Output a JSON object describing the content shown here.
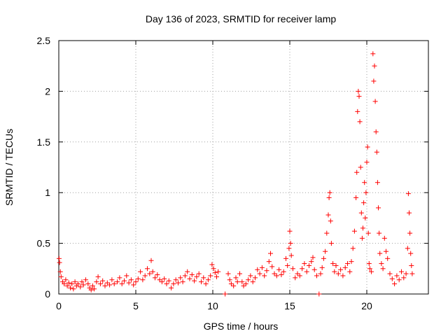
{
  "chart_data": {
    "type": "scatter",
    "title": "Day 136 of 2023, SRMTID for receiver lamp",
    "xlabel": "GPS time / hours",
    "ylabel": "SRMTID / TECUs",
    "xlim": [
      0,
      24
    ],
    "ylim": [
      0,
      2.5
    ],
    "xticks": [
      0,
      5,
      10,
      15,
      20
    ],
    "xtick_labels": [
      "0",
      "5",
      "10",
      "15",
      "20"
    ],
    "yticks": [
      0,
      0.5,
      1,
      1.5,
      2,
      2.5
    ],
    "ytick_labels": [
      "0",
      "0.5",
      "1",
      "1.5",
      "2",
      "2.5"
    ],
    "grid": true,
    "marker": "plus",
    "series_color": "#ff0000",
    "series": [
      {
        "name": "SRMTID",
        "points": [
          [
            0.02,
            0.35
          ],
          [
            0.05,
            0.31
          ],
          [
            0.1,
            0.22
          ],
          [
            0.15,
            0.17
          ],
          [
            0.25,
            0.12
          ],
          [
            0.35,
            0.1
          ],
          [
            0.45,
            0.14
          ],
          [
            0.55,
            0.08
          ],
          [
            0.65,
            0.11
          ],
          [
            0.75,
            0.06
          ],
          [
            0.85,
            0.1
          ],
          [
            0.95,
            0.05
          ],
          [
            1.05,
            0.12
          ],
          [
            1.15,
            0.08
          ],
          [
            1.25,
            0.1
          ],
          [
            1.4,
            0.07
          ],
          [
            1.5,
            0.12
          ],
          [
            1.6,
            0.09
          ],
          [
            1.75,
            0.14
          ],
          [
            1.9,
            0.1
          ],
          [
            2.0,
            0.06
          ],
          [
            2.1,
            0.04
          ],
          [
            2.2,
            0.08
          ],
          [
            2.3,
            0.05
          ],
          [
            2.45,
            0.12
          ],
          [
            2.55,
            0.17
          ],
          [
            2.7,
            0.1
          ],
          [
            2.85,
            0.13
          ],
          [
            3.0,
            0.08
          ],
          [
            3.15,
            0.11
          ],
          [
            3.3,
            0.09
          ],
          [
            3.45,
            0.14
          ],
          [
            3.6,
            0.1
          ],
          [
            3.8,
            0.12
          ],
          [
            3.95,
            0.16
          ],
          [
            4.1,
            0.1
          ],
          [
            4.25,
            0.13
          ],
          [
            4.4,
            0.18
          ],
          [
            4.55,
            0.11
          ],
          [
            4.7,
            0.14
          ],
          [
            4.85,
            0.09
          ],
          [
            5.0,
            0.12
          ],
          [
            5.15,
            0.15
          ],
          [
            5.3,
            0.22
          ],
          [
            5.45,
            0.14
          ],
          [
            5.6,
            0.18
          ],
          [
            5.75,
            0.25
          ],
          [
            5.9,
            0.2
          ],
          [
            6.0,
            0.33
          ],
          [
            6.1,
            0.22
          ],
          [
            6.25,
            0.16
          ],
          [
            6.4,
            0.19
          ],
          [
            6.55,
            0.14
          ],
          [
            6.7,
            0.12
          ],
          [
            6.85,
            0.15
          ],
          [
            7.0,
            0.1
          ],
          [
            7.15,
            0.13
          ],
          [
            7.3,
            0.06
          ],
          [
            7.45,
            0.1
          ],
          [
            7.6,
            0.14
          ],
          [
            7.75,
            0.11
          ],
          [
            7.9,
            0.16
          ],
          [
            8.05,
            0.12
          ],
          [
            8.2,
            0.18
          ],
          [
            8.35,
            0.22
          ],
          [
            8.5,
            0.15
          ],
          [
            8.65,
            0.19
          ],
          [
            8.8,
            0.13
          ],
          [
            8.95,
            0.17
          ],
          [
            9.1,
            0.2
          ],
          [
            9.25,
            0.12
          ],
          [
            9.4,
            0.16
          ],
          [
            9.55,
            0.1
          ],
          [
            9.7,
            0.14
          ],
          [
            9.85,
            0.18
          ],
          [
            9.95,
            0.29
          ],
          [
            10.05,
            0.25
          ],
          [
            10.15,
            0.21
          ],
          [
            10.25,
            0.17
          ],
          [
            10.35,
            0.22
          ],
          [
            10.8,
            0.0
          ],
          [
            11.0,
            0.2
          ],
          [
            11.1,
            0.14
          ],
          [
            11.2,
            0.1
          ],
          [
            11.35,
            0.08
          ],
          [
            11.5,
            0.16
          ],
          [
            11.6,
            0.12
          ],
          [
            11.75,
            0.2
          ],
          [
            11.9,
            0.12
          ],
          [
            12.0,
            0.08
          ],
          [
            12.15,
            0.1
          ],
          [
            12.3,
            0.14
          ],
          [
            12.45,
            0.18
          ],
          [
            12.6,
            0.12
          ],
          [
            12.75,
            0.16
          ],
          [
            12.9,
            0.24
          ],
          [
            13.05,
            0.2
          ],
          [
            13.2,
            0.26
          ],
          [
            13.35,
            0.18
          ],
          [
            13.5,
            0.23
          ],
          [
            13.65,
            0.32
          ],
          [
            13.75,
            0.4
          ],
          [
            13.85,
            0.27
          ],
          [
            14.0,
            0.2
          ],
          [
            14.15,
            0.18
          ],
          [
            14.3,
            0.24
          ],
          [
            14.45,
            0.19
          ],
          [
            14.6,
            0.22
          ],
          [
            14.75,
            0.35
          ],
          [
            14.85,
            0.28
          ],
          [
            14.95,
            0.45
          ],
          [
            15.0,
            0.62
          ],
          [
            15.05,
            0.5
          ],
          [
            15.1,
            0.38
          ],
          [
            15.2,
            0.25
          ],
          [
            15.35,
            0.16
          ],
          [
            15.5,
            0.2
          ],
          [
            15.65,
            0.18
          ],
          [
            15.8,
            0.25
          ],
          [
            15.95,
            0.3
          ],
          [
            16.1,
            0.22
          ],
          [
            16.25,
            0.28
          ],
          [
            16.4,
            0.32
          ],
          [
            16.5,
            0.36
          ],
          [
            16.6,
            0.24
          ],
          [
            16.75,
            0.18
          ],
          [
            16.9,
            0.0
          ],
          [
            17.0,
            0.2
          ],
          [
            17.1,
            0.26
          ],
          [
            17.2,
            0.35
          ],
          [
            17.3,
            0.42
          ],
          [
            17.4,
            0.6
          ],
          [
            17.5,
            0.78
          ],
          [
            17.55,
            0.95
          ],
          [
            17.6,
            1.0
          ],
          [
            17.65,
            0.72
          ],
          [
            17.7,
            0.5
          ],
          [
            17.8,
            0.3
          ],
          [
            17.9,
            0.22
          ],
          [
            18.0,
            0.28
          ],
          [
            18.15,
            0.2
          ],
          [
            18.3,
            0.24
          ],
          [
            18.45,
            0.18
          ],
          [
            18.6,
            0.26
          ],
          [
            18.75,
            0.3
          ],
          [
            18.9,
            0.22
          ],
          [
            19.0,
            0.32
          ],
          [
            19.1,
            0.45
          ],
          [
            19.2,
            0.62
          ],
          [
            19.3,
            0.95
          ],
          [
            19.35,
            1.2
          ],
          [
            19.4,
            1.8
          ],
          [
            19.45,
            2.0
          ],
          [
            19.5,
            1.95
          ],
          [
            19.55,
            1.7
          ],
          [
            19.6,
            1.25
          ],
          [
            19.65,
            0.8
          ],
          [
            19.7,
            0.55
          ],
          [
            19.75,
            0.65
          ],
          [
            19.8,
            0.9
          ],
          [
            19.85,
            1.1
          ],
          [
            19.9,
            0.75
          ],
          [
            19.95,
            1.0
          ],
          [
            20.0,
            1.3
          ],
          [
            20.05,
            1.45
          ],
          [
            20.1,
            0.6
          ],
          [
            20.15,
            0.3
          ],
          [
            20.2,
            0.25
          ],
          [
            20.3,
            0.22
          ],
          [
            20.4,
            2.37
          ],
          [
            20.45,
            2.1
          ],
          [
            20.5,
            2.25
          ],
          [
            20.55,
            1.9
          ],
          [
            20.6,
            1.6
          ],
          [
            20.65,
            1.4
          ],
          [
            20.7,
            1.1
          ],
          [
            20.75,
            0.85
          ],
          [
            20.8,
            0.6
          ],
          [
            20.85,
            0.4
          ],
          [
            20.95,
            0.3
          ],
          [
            21.05,
            0.25
          ],
          [
            21.15,
            0.55
          ],
          [
            21.25,
            0.42
          ],
          [
            21.35,
            0.35
          ],
          [
            21.5,
            0.2
          ],
          [
            21.65,
            0.15
          ],
          [
            21.8,
            0.1
          ],
          [
            21.95,
            0.18
          ],
          [
            22.1,
            0.14
          ],
          [
            22.25,
            0.22
          ],
          [
            22.4,
            0.16
          ],
          [
            22.55,
            0.2
          ],
          [
            22.65,
            0.45
          ],
          [
            22.7,
            0.99
          ],
          [
            22.75,
            0.8
          ],
          [
            22.8,
            0.6
          ],
          [
            22.85,
            0.4
          ],
          [
            22.9,
            0.28
          ],
          [
            22.95,
            0.2
          ]
        ]
      }
    ]
  }
}
